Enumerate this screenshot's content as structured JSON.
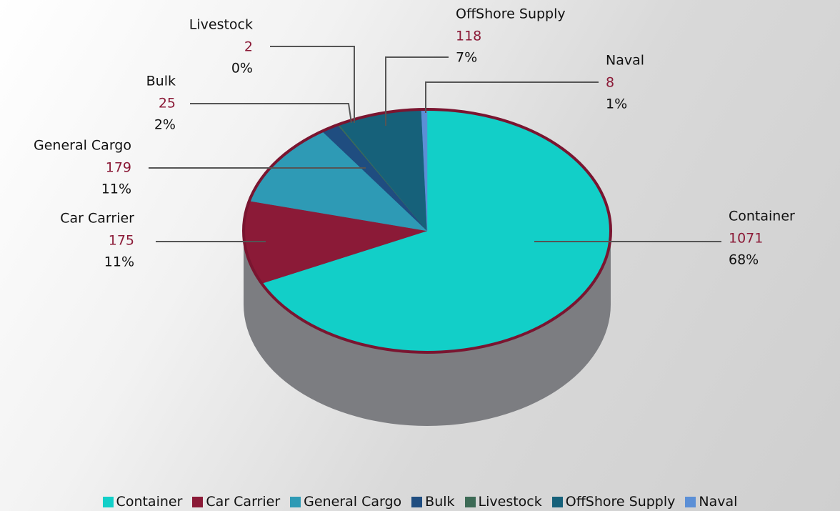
{
  "chart_data": {
    "type": "pie3d",
    "categories": [
      "Container",
      "Car Carrier",
      "General Cargo",
      "Bulk",
      "Livestock",
      "OffShore Supply",
      "Naval"
    ],
    "values": [
      1071,
      175,
      179,
      25,
      2,
      118,
      8
    ],
    "percentages": [
      {
        "value": 68,
        "label": "68%"
      },
      {
        "value": 11,
        "label": "11%"
      },
      {
        "value": 11,
        "label": "11%"
      },
      {
        "value": 2,
        "label": "2%"
      },
      {
        "value": 0,
        "label": "0%"
      },
      {
        "value": 7,
        "label": "7%"
      },
      {
        "value": 1,
        "label": "1%"
      }
    ],
    "colors": [
      "#12cfc8",
      "#8b1a37",
      "#2e9ab5",
      "#1f4d80",
      "#3d6b56",
      "#16617a",
      "#5b8fd6"
    ],
    "legend": "bottom"
  }
}
